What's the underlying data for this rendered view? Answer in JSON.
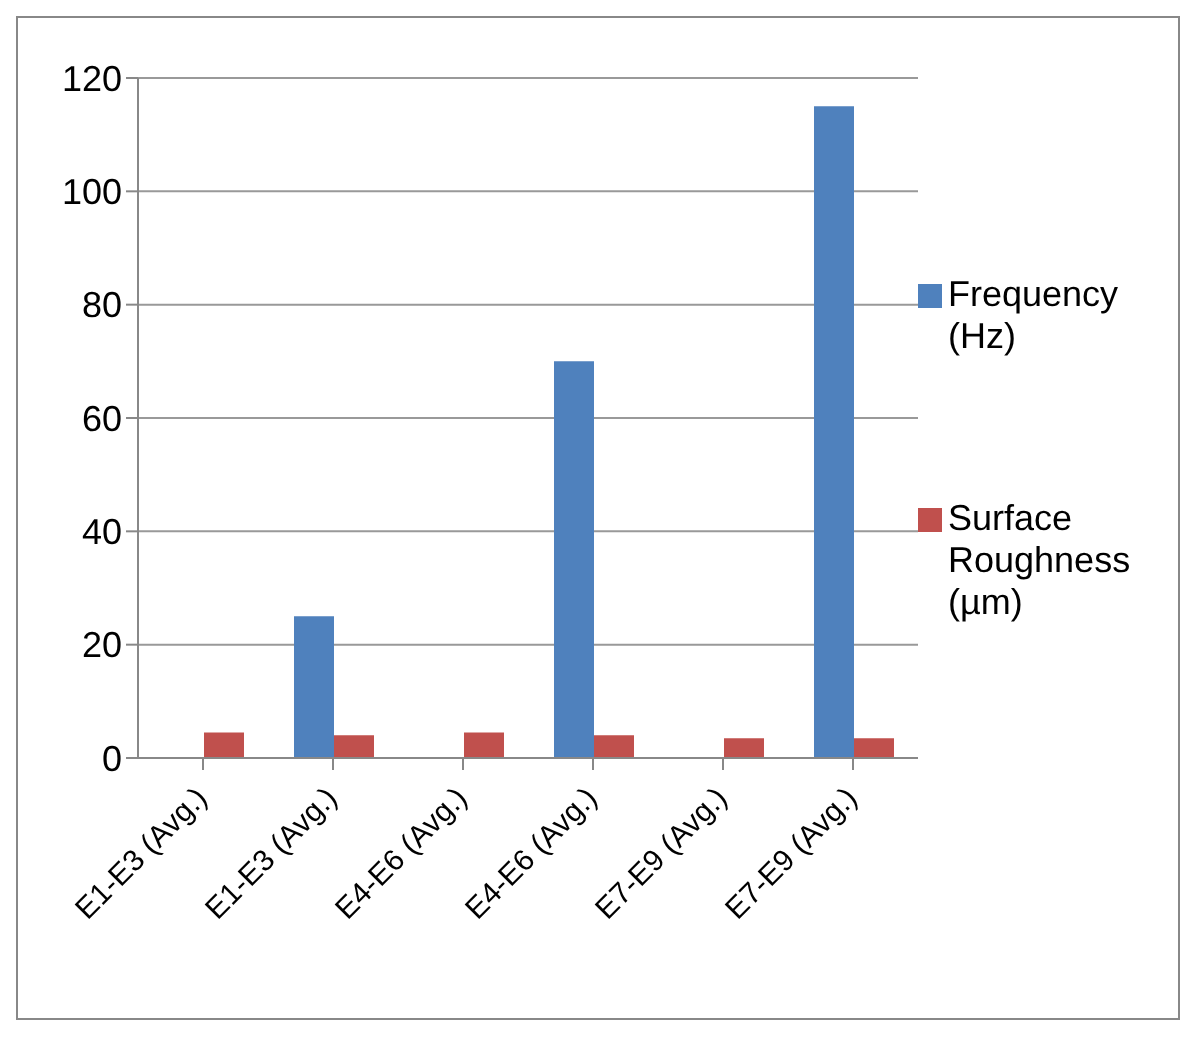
{
  "chart_data": {
    "type": "bar",
    "categories": [
      "E1-E3 (Avg.)",
      "E1-E3 (Avg.)",
      "E4-E6 (Avg.)",
      "E4-E6 (Avg.)",
      "E7-E9 (Avg.)",
      "E7-E9 (Avg.)"
    ],
    "series": [
      {
        "name": "Frequency (Hz)",
        "color": "#4f81bd",
        "values": [
          0,
          25,
          0,
          70,
          0,
          115
        ]
      },
      {
        "name": "Surface Roughness (µm)",
        "color": "#c0504d",
        "values": [
          4.5,
          4,
          4.5,
          4,
          3.5,
          3.5
        ]
      }
    ],
    "ylim": [
      0,
      120
    ],
    "yticks": [
      0,
      20,
      40,
      60,
      80,
      100,
      120
    ],
    "grid": "y",
    "legend": "right"
  }
}
